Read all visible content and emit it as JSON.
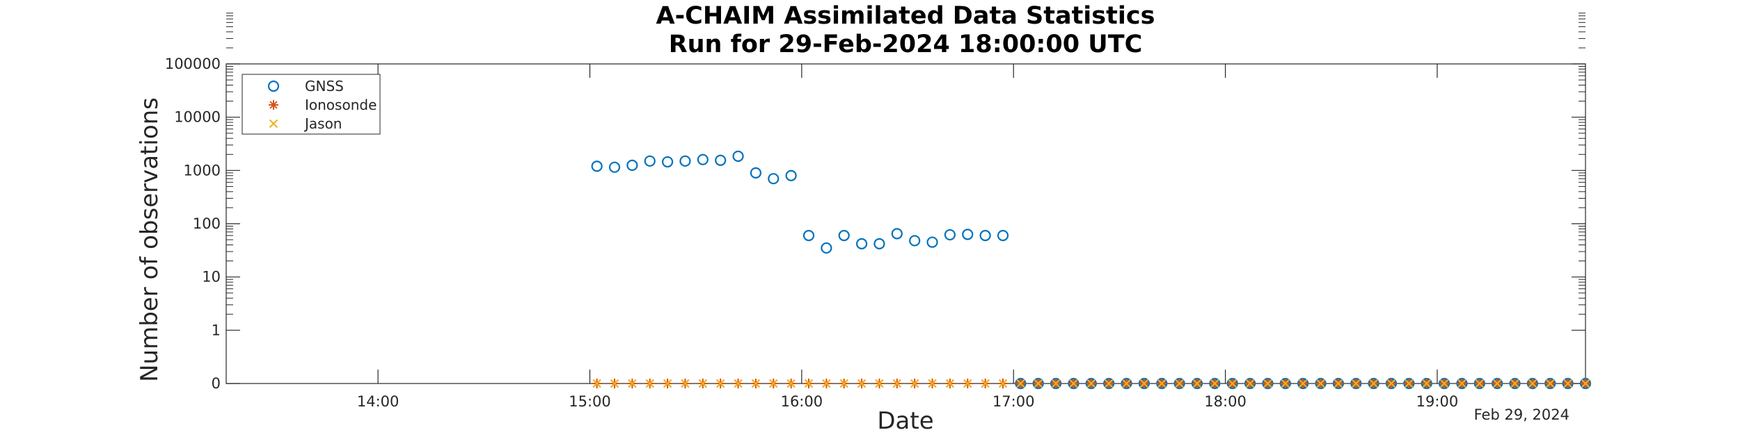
{
  "chart_data": {
    "type": "scatter",
    "title": [
      "A-CHAIM Assimilated Data Statistics",
      "Run for 29-Feb-2024 18:00:00 UTC"
    ],
    "xlabel": "Date",
    "ylabel": "Number of observations",
    "date_annotation": "Feb 29, 2024",
    "yscale": "log",
    "xlim": [
      "13:17",
      "19:42"
    ],
    "xticks": [
      "14:00",
      "15:00",
      "16:00",
      "17:00",
      "18:00",
      "19:00"
    ],
    "yticks": [
      "0",
      "1",
      "10",
      "100",
      "1000",
      "10000",
      "100000"
    ],
    "grid": false,
    "legend_position": "top-left",
    "series": [
      {
        "name": "GNSS",
        "marker": "circle",
        "color": "#0072BD",
        "x": [
          "15:02",
          "15:07",
          "15:12",
          "15:17",
          "15:22",
          "15:27",
          "15:32",
          "15:37",
          "15:42",
          "15:47",
          "15:52",
          "15:57",
          "16:02",
          "16:07",
          "16:12",
          "16:17",
          "16:22",
          "16:27",
          "16:32",
          "16:37",
          "16:42",
          "16:47",
          "16:52",
          "16:57",
          "17:02",
          "17:07",
          "17:12",
          "17:17",
          "17:22",
          "17:27",
          "17:32",
          "17:37",
          "17:42",
          "17:47",
          "17:52",
          "17:57",
          "18:02",
          "18:07",
          "18:12",
          "18:17",
          "18:22",
          "18:27",
          "18:32",
          "18:37",
          "18:42",
          "18:47",
          "18:52",
          "18:57",
          "19:02",
          "19:07",
          "19:12",
          "19:17",
          "19:22",
          "19:27",
          "19:32",
          "19:37",
          "19:42"
        ],
        "y": [
          1200,
          1150,
          1250,
          1500,
          1450,
          1500,
          1600,
          1550,
          1850,
          900,
          700,
          800,
          60,
          35,
          60,
          42,
          42,
          65,
          48,
          45,
          62,
          63,
          60,
          60,
          0,
          0,
          0,
          0,
          0,
          0,
          0,
          0,
          0,
          0,
          0,
          0,
          0,
          0,
          0,
          0,
          0,
          0,
          0,
          0,
          0,
          0,
          0,
          0,
          0,
          0,
          0,
          0,
          0,
          0,
          0,
          0,
          0
        ]
      },
      {
        "name": "Ionosonde",
        "marker": "asterisk",
        "color": "#D95319",
        "x": [
          "15:02",
          "15:07",
          "15:12",
          "15:17",
          "15:22",
          "15:27",
          "15:32",
          "15:37",
          "15:42",
          "15:47",
          "15:52",
          "15:57",
          "16:02",
          "16:07",
          "16:12",
          "16:17",
          "16:22",
          "16:27",
          "16:32",
          "16:37",
          "16:42",
          "16:47",
          "16:52",
          "16:57",
          "17:02",
          "17:07",
          "17:12",
          "17:17",
          "17:22",
          "17:27",
          "17:32",
          "17:37",
          "17:42",
          "17:47",
          "17:52",
          "17:57",
          "18:02",
          "18:07",
          "18:12",
          "18:17",
          "18:22",
          "18:27",
          "18:32",
          "18:37",
          "18:42",
          "18:47",
          "18:52",
          "18:57",
          "19:02",
          "19:07",
          "19:12",
          "19:17",
          "19:22",
          "19:27",
          "19:32",
          "19:37",
          "19:42"
        ],
        "y": [
          0,
          0,
          0,
          0,
          0,
          0,
          0,
          0,
          0,
          0,
          0,
          0,
          0,
          0,
          0,
          0,
          0,
          0,
          0,
          0,
          0,
          0,
          0,
          0,
          0,
          0,
          0,
          0,
          0,
          0,
          0,
          0,
          0,
          0,
          0,
          0,
          0,
          0,
          0,
          0,
          0,
          0,
          0,
          0,
          0,
          0,
          0,
          0,
          0,
          0,
          0,
          0,
          0,
          0,
          0,
          0,
          0
        ]
      },
      {
        "name": "Jason",
        "marker": "x",
        "color": "#EDB120",
        "x": [
          "15:02",
          "15:07",
          "15:12",
          "15:17",
          "15:22",
          "15:27",
          "15:32",
          "15:37",
          "15:42",
          "15:47",
          "15:52",
          "15:57",
          "16:02",
          "16:07",
          "16:12",
          "16:17",
          "16:22",
          "16:27",
          "16:32",
          "16:37",
          "16:42",
          "16:47",
          "16:52",
          "16:57",
          "17:02",
          "17:07",
          "17:12",
          "17:17",
          "17:22",
          "17:27",
          "17:32",
          "17:37",
          "17:42",
          "17:47",
          "17:52",
          "17:57",
          "18:02",
          "18:07",
          "18:12",
          "18:17",
          "18:22",
          "18:27",
          "18:32",
          "18:37",
          "18:42",
          "18:47",
          "18:52",
          "18:57",
          "19:02",
          "19:07",
          "19:12",
          "19:17",
          "19:22",
          "19:27",
          "19:32",
          "19:37",
          "19:42"
        ],
        "y": [
          0,
          0,
          0,
          0,
          0,
          0,
          0,
          0,
          0,
          0,
          0,
          0,
          0,
          0,
          0,
          0,
          0,
          0,
          0,
          0,
          0,
          0,
          0,
          0,
          0,
          0,
          0,
          0,
          0,
          0,
          0,
          0,
          0,
          0,
          0,
          0,
          0,
          0,
          0,
          0,
          0,
          0,
          0,
          0,
          0,
          0,
          0,
          0,
          0,
          0,
          0,
          0,
          0,
          0,
          0,
          0,
          0
        ]
      }
    ]
  }
}
